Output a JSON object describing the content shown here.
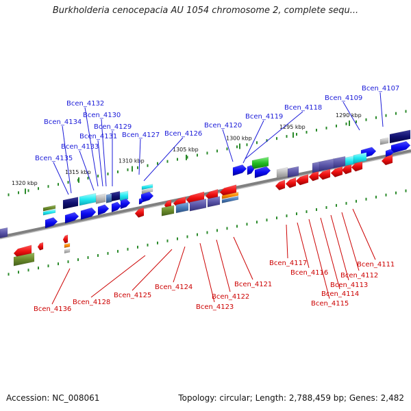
{
  "title": "Burkholderia cenocepacia AU 1054 chromosome 2, complete sequ...",
  "footer": {
    "accession": "Accession: NC_008061",
    "topology": "Topology: circular; Length: 2,788,459 bp; Genes: 2,482"
  },
  "colors": {
    "upper_label": "#1a1ad8",
    "lower_label": "#cc0000",
    "backbone": "#808080",
    "tick": "#2a8a2a"
  },
  "ticks": [
    {
      "text": "1290 kbp"
    },
    {
      "text": "1295 kbp"
    },
    {
      "text": "1300 kbp"
    },
    {
      "text": "1305 kbp"
    },
    {
      "text": "1310 kbp"
    },
    {
      "text": "1315 kbp"
    },
    {
      "text": "1320 kbp"
    }
  ],
  "upper_genes": [
    {
      "label": "Bcen_4107"
    },
    {
      "label": "Bcen_4109"
    },
    {
      "label": "Bcen_4118"
    },
    {
      "label": "Bcen_4119"
    },
    {
      "label": "Bcen_4120"
    },
    {
      "label": "Bcen_4126"
    },
    {
      "label": "Bcen_4127"
    },
    {
      "label": "Bcen_4129"
    },
    {
      "label": "Bcen_4130"
    },
    {
      "label": "Bcen_4131"
    },
    {
      "label": "Bcen_4132"
    },
    {
      "label": "Bcen_4133"
    },
    {
      "label": "Bcen_4134"
    },
    {
      "label": "Bcen_4135"
    }
  ],
  "lower_genes": [
    {
      "label": "Bcen_4111"
    },
    {
      "label": "Bcen_4112"
    },
    {
      "label": "Bcen_4113"
    },
    {
      "label": "Bcen_4114"
    },
    {
      "label": "Bcen_4115"
    },
    {
      "label": "Bcen_4116"
    },
    {
      "label": "Bcen_4117"
    },
    {
      "label": "Bcen_4121"
    },
    {
      "label": "Bcen_4122"
    },
    {
      "label": "Bcen_4123"
    },
    {
      "label": "Bcen_4124"
    },
    {
      "label": "Bcen_4125"
    },
    {
      "label": "Bcen_4128"
    },
    {
      "label": "Bcen_4136"
    }
  ]
}
